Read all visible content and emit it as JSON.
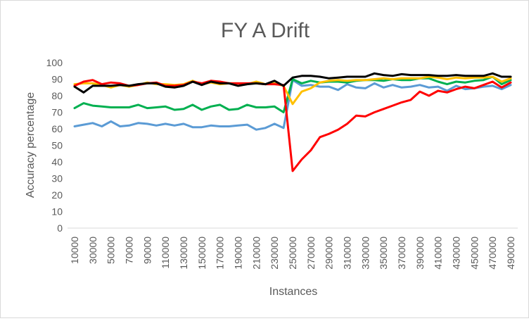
{
  "chart_data": {
    "type": "line",
    "title": "FY A Drift",
    "xlabel": "Instances",
    "ylabel": "Accuracy percentage",
    "ylim": [
      0,
      100
    ],
    "yticks": [
      0,
      10,
      20,
      30,
      40,
      50,
      60,
      70,
      80,
      90,
      100
    ],
    "grid": false,
    "legend": "none",
    "x": [
      10000,
      20000,
      30000,
      40000,
      50000,
      60000,
      70000,
      80000,
      90000,
      100000,
      110000,
      120000,
      130000,
      140000,
      150000,
      160000,
      170000,
      180000,
      190000,
      200000,
      210000,
      220000,
      230000,
      240000,
      250000,
      260000,
      270000,
      280000,
      290000,
      300000,
      310000,
      320000,
      330000,
      340000,
      350000,
      360000,
      370000,
      380000,
      390000,
      400000,
      410000,
      420000,
      430000,
      440000,
      450000,
      460000,
      470000,
      480000,
      490000
    ],
    "xtick_labels": [
      "10000",
      "30000",
      "50000",
      "70000",
      "90000",
      "110000",
      "130000",
      "150000",
      "170000",
      "190000",
      "210000",
      "230000",
      "250000",
      "270000",
      "290000",
      "310000",
      "330000",
      "350000",
      "370000",
      "390000",
      "410000",
      "430000",
      "450000",
      "470000",
      "490000"
    ],
    "series": [
      {
        "color": "#5b9bd5",
        "values": [
          61.5,
          62.5,
          63.5,
          61.5,
          64.5,
          61.5,
          62,
          63.5,
          63,
          62,
          63,
          62,
          63,
          61,
          61,
          62,
          61.5,
          61.5,
          62,
          62.5,
          59.5,
          60.5,
          63,
          60.5,
          89.5,
          86,
          86.5,
          85.5,
          85.5,
          83.5,
          87,
          85,
          84.5,
          87.5,
          85,
          86.5,
          85,
          85.5,
          86.5,
          85,
          85.5,
          83,
          86,
          84,
          84.5,
          85.5,
          86,
          84,
          86.5
        ]
      },
      {
        "color": "#00b050",
        "values": [
          72.5,
          75.5,
          74,
          73.5,
          73,
          73,
          73,
          74.5,
          72.5,
          73,
          73.5,
          71.5,
          72,
          74.5,
          71.5,
          73.5,
          74.5,
          71.5,
          72,
          74.5,
          73,
          73,
          73.5,
          70,
          90,
          87.5,
          89,
          88,
          88.5,
          88.5,
          88,
          89,
          89.5,
          89.5,
          89,
          90,
          89.5,
          89.5,
          90.5,
          90.5,
          88.5,
          87,
          88.5,
          88,
          89,
          89.5,
          91.5,
          87,
          89.5
        ]
      },
      {
        "color": "#ffc000",
        "values": [
          87,
          87.5,
          87.5,
          86.5,
          85,
          86.5,
          85.5,
          86.5,
          88,
          87,
          87,
          86.5,
          87,
          89,
          87,
          88,
          87,
          87.5,
          87.5,
          87,
          88.5,
          87,
          87.5,
          86,
          75,
          82.5,
          84.5,
          88,
          89,
          89.5,
          89,
          89.5,
          89.5,
          90,
          90.5,
          90,
          90.5,
          90.5,
          90.5,
          91.5,
          91,
          90,
          91,
          90.5,
          91,
          91,
          91.5,
          88.5,
          90.5
        ]
      },
      {
        "color": "#ff0000",
        "values": [
          86,
          88.5,
          89.5,
          87,
          88,
          87.5,
          86,
          86.5,
          87.5,
          88,
          86,
          86,
          86.5,
          88.5,
          87.5,
          89,
          88.5,
          87.5,
          87.5,
          87.5,
          87.5,
          87,
          87,
          86.5,
          34.5,
          41.5,
          47,
          55,
          57,
          59.5,
          63,
          68,
          67.5,
          70,
          72,
          74,
          76,
          77.5,
          82.5,
          80,
          83,
          82,
          84,
          85.5,
          84.5,
          86.5,
          88.5,
          85,
          88
        ]
      },
      {
        "color": "#000000",
        "values": [
          85.5,
          82,
          86,
          86,
          86,
          86.5,
          86,
          87,
          87.5,
          87.5,
          85.5,
          85,
          86,
          88.5,
          86.5,
          88.5,
          87.5,
          87.5,
          86,
          87,
          87.5,
          87,
          89,
          86,
          91,
          92,
          92,
          91.5,
          90.5,
          91,
          91.5,
          91.5,
          91.5,
          93.5,
          92.5,
          92,
          93,
          92.5,
          92.5,
          92.5,
          92,
          92,
          92.5,
          92,
          92,
          92,
          93.5,
          91.5,
          91.5
        ]
      }
    ]
  }
}
